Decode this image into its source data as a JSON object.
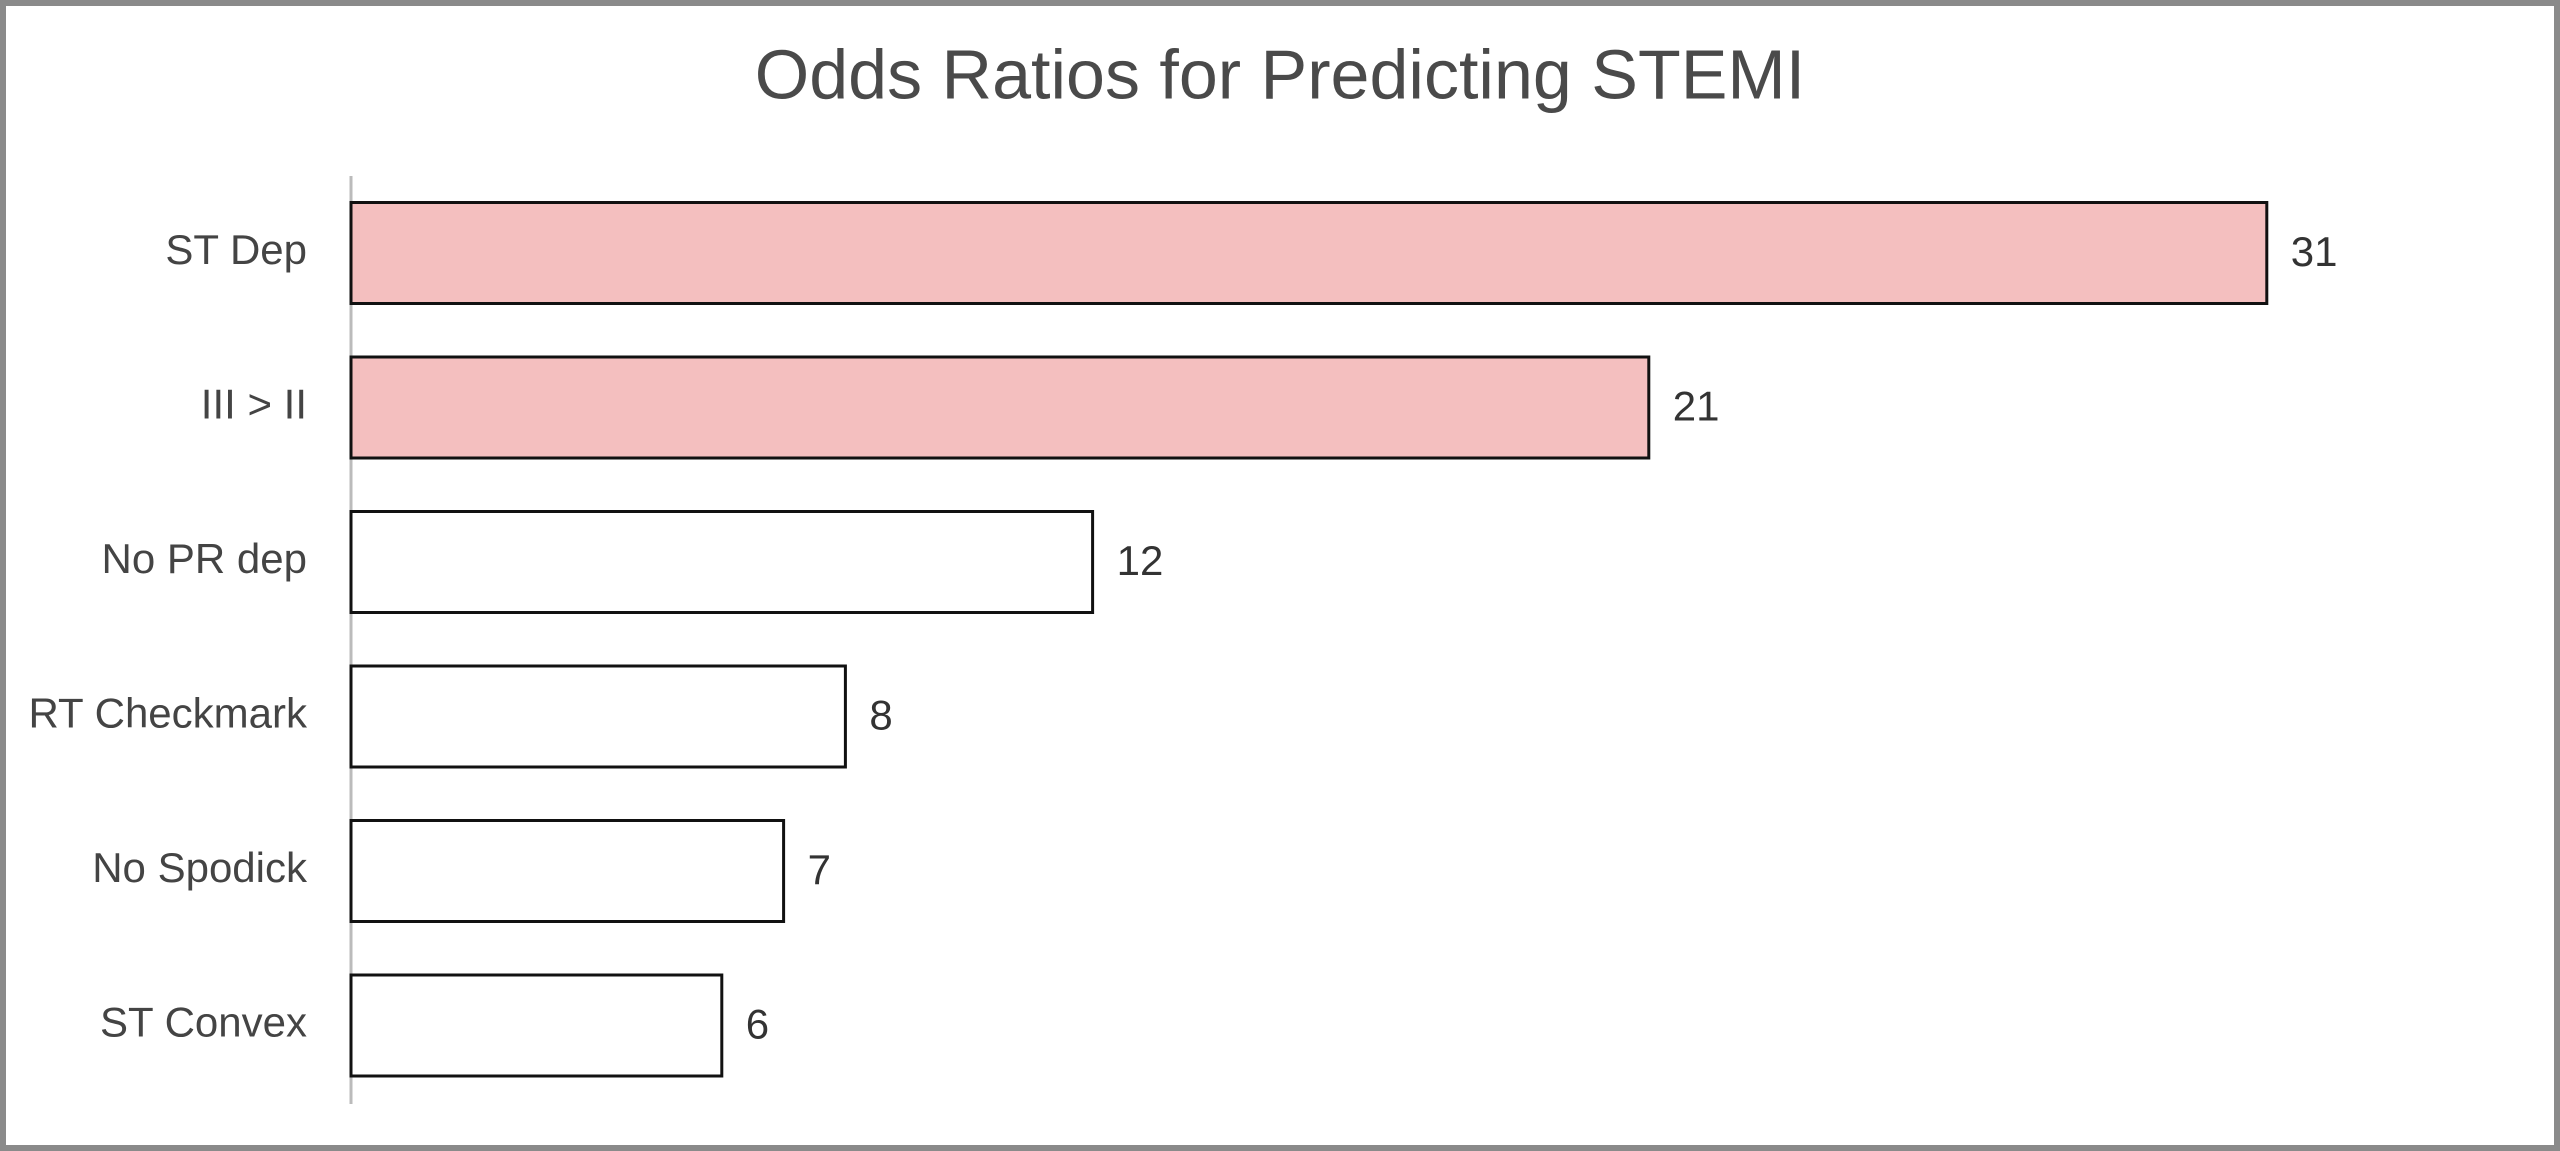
{
  "chart_data": {
    "type": "bar",
    "orientation": "horizontal",
    "title": "Odds Ratios for Predicting STEMI",
    "categories": [
      "ST Dep",
      "III > II",
      "No PR dep",
      "RT Checkmark",
      "No Spodick",
      "ST Convex"
    ],
    "values": [
      31,
      21,
      12,
      8,
      7,
      6
    ],
    "colors": [
      "#f4bfbf",
      "#f4bfbf",
      "#ffffff",
      "#ffffff",
      "#ffffff",
      "#ffffff"
    ],
    "xlim": [
      0,
      35
    ]
  }
}
